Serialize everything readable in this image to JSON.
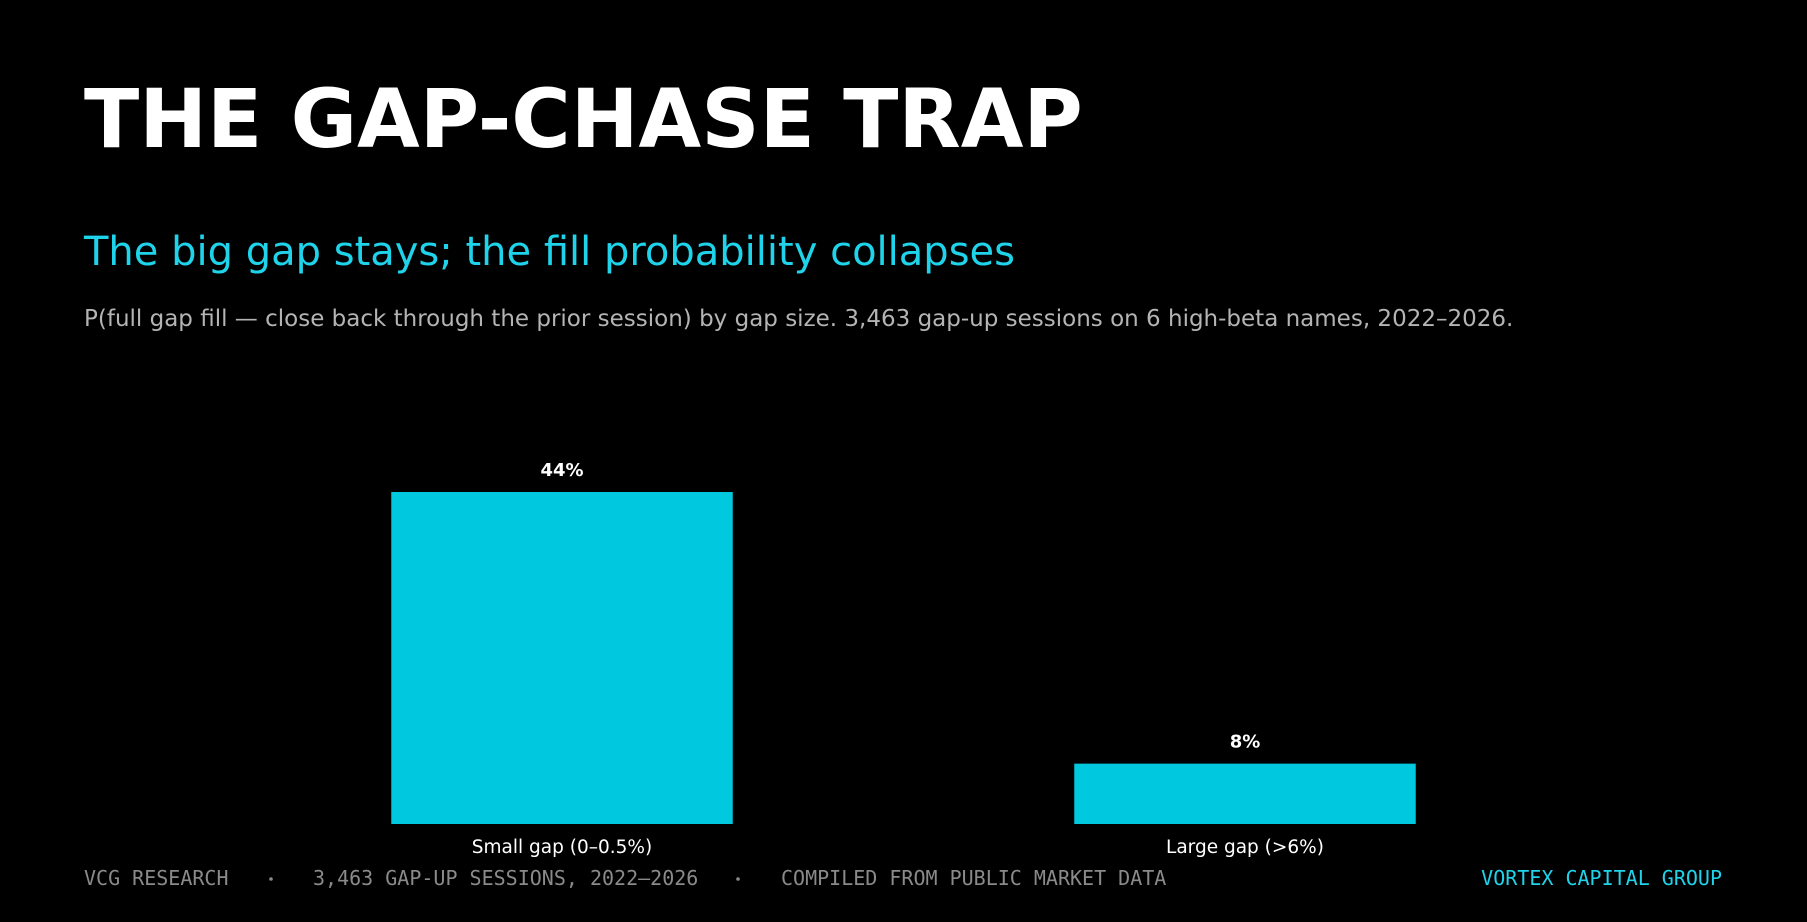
{
  "chart_data": {
    "type": "bar",
    "title": "THE GAP-CHASE TRAP",
    "subtitle": "The big gap stays; the fill probability collapses",
    "description": "P(full gap fill — close back through the prior session) by gap size. 3,463 gap-up sessions on 6 high-beta names, 2022–2026.",
    "categories": [
      "Small gap (0–0.5%)",
      "Large gap (>6%)"
    ],
    "values": [
      44,
      8
    ],
    "value_labels": [
      "44%",
      "8%"
    ],
    "color": "#00c8df",
    "footer": [
      "VCG RESEARCH",
      "3,463 GAP-UP SESSIONS, 2022–2026",
      "COMPILED FROM PUBLIC MARKET DATA"
    ],
    "brand": "VORTEX CAPITAL GROUP"
  }
}
